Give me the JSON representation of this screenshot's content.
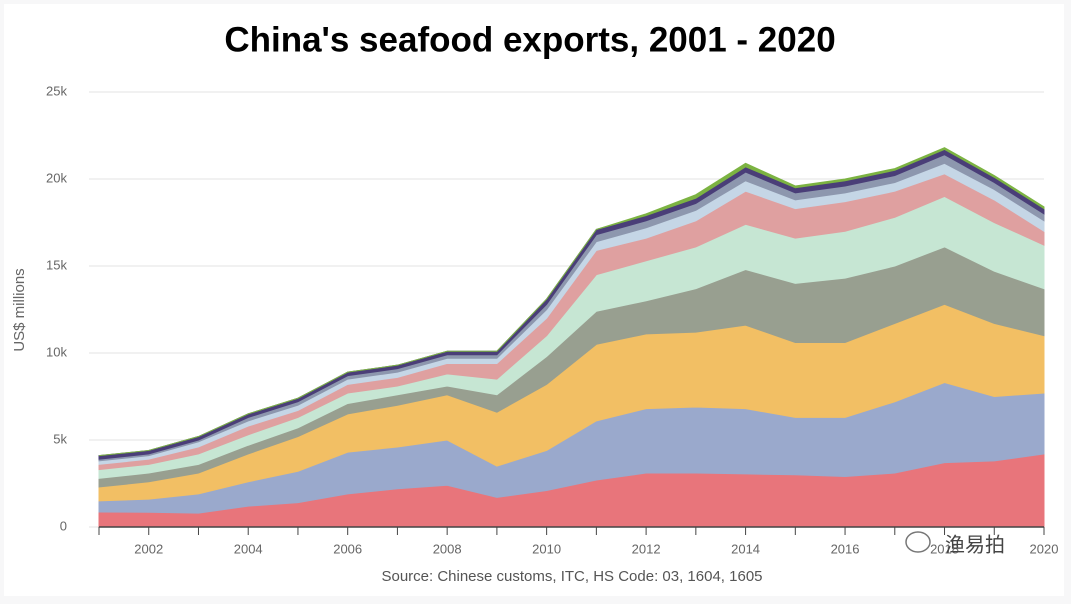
{
  "chart_data": {
    "type": "stacked-area",
    "title": "China's seafood exports, 2001 - 2020",
    "ylabel": "US$ millions",
    "source": "Source: Chinese customs, ITC, HS Code: 03, 1604, 1605",
    "watermark": "渔易拍",
    "x": [
      2001,
      2002,
      2003,
      2004,
      2005,
      2006,
      2007,
      2008,
      2009,
      2010,
      2011,
      2012,
      2013,
      2014,
      2015,
      2016,
      2017,
      2018,
      2019,
      2020
    ],
    "xlim": [
      2001,
      2020
    ],
    "xticks": [
      2002,
      2004,
      2006,
      2008,
      2010,
      2012,
      2014,
      2016,
      2018,
      2020
    ],
    "ylim": [
      0,
      25000
    ],
    "yticks": [
      0,
      {
        "value": 5000,
        "label": "5k"
      },
      {
        "value": 10000,
        "label": "10k"
      },
      {
        "value": 15000,
        "label": "15k"
      },
      {
        "value": 20000,
        "label": "20k"
      },
      {
        "value": 25000,
        "label": "25k"
      }
    ],
    "grid": true,
    "series": [
      {
        "color": "#e8757b",
        "values": [
          860,
          850,
          800,
          1200,
          1400,
          1900,
          2200,
          2400,
          1700,
          2100,
          2700,
          3100,
          3100,
          3050,
          3000,
          2900,
          3100,
          3700,
          3800,
          4200
        ]
      },
      {
        "color": "#9aa9cc",
        "values": [
          640,
          750,
          1100,
          1400,
          1800,
          2400,
          2400,
          2600,
          1800,
          2300,
          3400,
          3700,
          3800,
          3750,
          3300,
          3400,
          4100,
          4600,
          3700,
          3500
        ]
      },
      {
        "color": "#f2bf64",
        "values": [
          800,
          1000,
          1200,
          1600,
          2000,
          2200,
          2400,
          2600,
          3100,
          3800,
          4400,
          4300,
          4300,
          4800,
          4300,
          4300,
          4500,
          4500,
          4200,
          3300
        ]
      },
      {
        "color": "#989f90",
        "values": [
          500,
          500,
          500,
          500,
          500,
          600,
          600,
          500,
          1000,
          1600,
          1900,
          1900,
          2500,
          3200,
          3400,
          3700,
          3300,
          3300,
          3000,
          2700
        ]
      },
      {
        "color": "#c6e6d3",
        "values": [
          500,
          500,
          600,
          600,
          600,
          600,
          500,
          700,
          900,
          1200,
          2100,
          2300,
          2400,
          2600,
          2600,
          2700,
          2800,
          2900,
          2800,
          2500
        ]
      },
      {
        "color": "#dfa0a0",
        "values": [
          300,
          300,
          400,
          500,
          400,
          500,
          500,
          600,
          900,
          1000,
          1400,
          1300,
          1500,
          1900,
          1700,
          1700,
          1500,
          1300,
          1300,
          800
        ]
      },
      {
        "color": "#c5d6e6",
        "values": [
          200,
          200,
          300,
          300,
          300,
          300,
          300,
          300,
          300,
          500,
          500,
          600,
          600,
          600,
          500,
          500,
          500,
          600,
          600,
          600
        ]
      },
      {
        "color": "#8d97ae",
        "values": [
          100,
          100,
          100,
          200,
          200,
          200,
          200,
          200,
          200,
          300,
          400,
          400,
          400,
          500,
          400,
          400,
          400,
          500,
          400,
          400
        ]
      },
      {
        "color": "#4a3e78",
        "values": [
          200,
          200,
          200,
          200,
          200,
          200,
          200,
          200,
          200,
          300,
          300,
          300,
          300,
          300,
          300,
          300,
          300,
          300,
          300,
          300
        ]
      },
      {
        "color": "#7cb342",
        "values": [
          0,
          0,
          0,
          0,
          0,
          0,
          0,
          0,
          0,
          0,
          0,
          100,
          200,
          200,
          100,
          100,
          100,
          100,
          100,
          100
        ]
      }
    ]
  }
}
